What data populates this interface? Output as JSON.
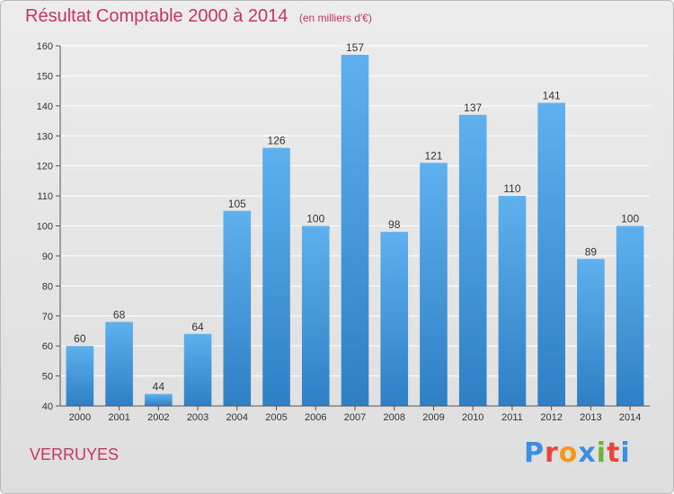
{
  "header": {
    "title": "Résultat Comptable 2000 à 2014",
    "subtitle": "(en milliers d'€)"
  },
  "footer": {
    "commune": "VERRUYES",
    "logo_letters": [
      "P",
      "r",
      "o",
      "x",
      "i",
      "t",
      "i"
    ],
    "logo_colors": [
      "#3d8ee0",
      "#e8463c",
      "#f19a1f",
      "#3d8ee0",
      "#6ab437",
      "#e8463c",
      "#3d8ee0"
    ]
  },
  "colors": {
    "bar_light": "#5fb0ee",
    "bar_dark": "#2f7fc4",
    "title": "#c8365f",
    "grid": "#ffffff"
  },
  "chart_data": {
    "type": "bar",
    "categories": [
      "2000",
      "2001",
      "2002",
      "2003",
      "2004",
      "2005",
      "2006",
      "2007",
      "2008",
      "2009",
      "2010",
      "2011",
      "2012",
      "2013",
      "2014"
    ],
    "values": [
      60,
      68,
      44,
      64,
      105,
      126,
      100,
      157,
      98,
      121,
      137,
      110,
      141,
      89,
      100
    ],
    "ylim": [
      40,
      160
    ],
    "yticks": [
      40,
      50,
      60,
      70,
      80,
      90,
      100,
      110,
      120,
      130,
      140,
      150,
      160
    ],
    "grid": true,
    "data_labels": true
  }
}
